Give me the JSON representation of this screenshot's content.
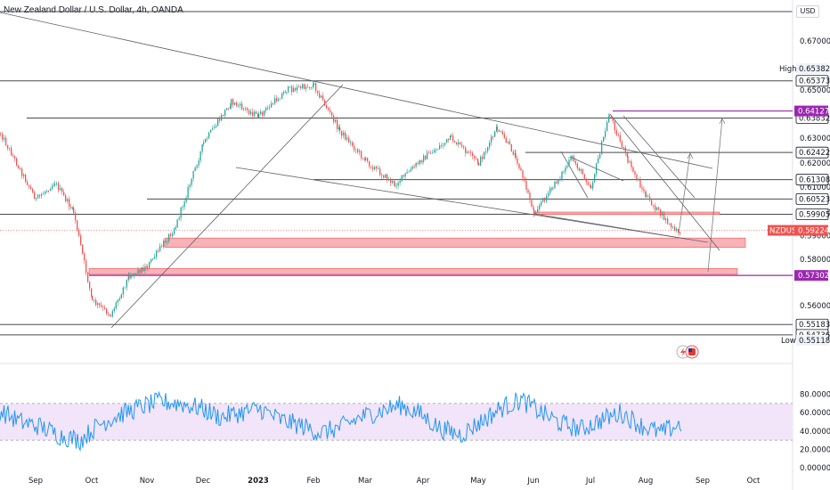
{
  "title": "New Zealand Dollar / U.S. Dollar, 4h, OANDA",
  "currency": "USD",
  "colors": {
    "candle_up": "#26a69a",
    "candle_down": "#ef5350",
    "highlight_line": "#9c27b0",
    "zone_fill": "#f7a6ad",
    "rsi_line": "#2196f3",
    "rsi_band": "#f3e5f9",
    "level_line": "#4a4a4a"
  },
  "chart_data": [
    {
      "type": "candlestick",
      "series": [
        {
          "name": "NZDUSD"
        }
      ],
      "x_ticks": [
        "Sep",
        "Oct",
        "Nov",
        "Dec",
        "2023",
        "Feb",
        "Mar",
        "Apr",
        "May",
        "Jun",
        "Jul",
        "Aug",
        "Sep",
        "Oct"
      ],
      "y_ticks": [
        "0.67000",
        "0.65000",
        "0.63000",
        "0.62000",
        "0.61000",
        "0.60000",
        "0.59000",
        "0.58000",
        "0.56000"
      ],
      "ylim": [
        0.545,
        0.685
      ],
      "path_points": [
        {
          "month": "Sep",
          "price": 0.605
        },
        {
          "month": "Sep",
          "price": 0.612
        },
        {
          "month": "Sep",
          "price": 0.6
        },
        {
          "month": "Oct",
          "price": 0.562
        },
        {
          "month": "Oct",
          "price": 0.556
        },
        {
          "month": "Oct",
          "price": 0.573
        },
        {
          "month": "Nov",
          "price": 0.577
        },
        {
          "month": "Nov",
          "price": 0.594
        },
        {
          "month": "Dec",
          "price": 0.628
        },
        {
          "month": "Dec",
          "price": 0.645
        },
        {
          "month": "2023",
          "price": 0.639
        },
        {
          "month": "2023",
          "price": 0.65
        },
        {
          "month": "Feb",
          "price": 0.652
        },
        {
          "month": "Feb",
          "price": 0.633
        },
        {
          "month": "Mar",
          "price": 0.621
        },
        {
          "month": "Mar",
          "price": 0.611
        },
        {
          "month": "Apr",
          "price": 0.622
        },
        {
          "month": "Apr",
          "price": 0.63
        },
        {
          "month": "May",
          "price": 0.62
        },
        {
          "month": "May",
          "price": 0.634
        },
        {
          "month": "May",
          "price": 0.623
        },
        {
          "month": "Jun",
          "price": 0.6
        },
        {
          "month": "Jun",
          "price": 0.61
        },
        {
          "month": "Jun",
          "price": 0.622
        },
        {
          "month": "Jul",
          "price": 0.61
        },
        {
          "month": "Jul",
          "price": 0.64
        },
        {
          "month": "Jul",
          "price": 0.621
        },
        {
          "month": "Aug",
          "price": 0.606
        },
        {
          "month": "Aug",
          "price": 0.592
        }
      ],
      "horizontal_levels": [
        {
          "value": 0.65373,
          "label": "0.65373"
        },
        {
          "value": 0.63832,
          "label": "0.63832"
        },
        {
          "value": 0.62422,
          "label": "0.62422"
        },
        {
          "value": 0.61308,
          "label": "0.61308"
        },
        {
          "value": 0.60523,
          "label": "0.60523"
        },
        {
          "value": 0.59905,
          "label": "0.59905"
        },
        {
          "value": 0.55183,
          "label": "0.55183"
        },
        {
          "value": 0.54736,
          "label": "0.54736"
        }
      ],
      "highlight_levels": [
        {
          "value": 0.64127,
          "label": "0.64127"
        },
        {
          "value": 0.57302,
          "label": "0.57302"
        }
      ],
      "current_price": {
        "symbol": "NZDUSD",
        "value": 0.59224,
        "label": "0.59224"
      },
      "high": {
        "label": "High",
        "value": "0.65382"
      },
      "low": {
        "label": "Low",
        "value": "0.55118"
      },
      "zones": [
        {
          "top": 0.589,
          "bottom": 0.585
        },
        {
          "top": 0.576,
          "bottom": 0.5735
        },
        {
          "top": 0.6,
          "bottom": 0.599
        }
      ]
    },
    {
      "type": "line",
      "series": [
        {
          "name": ""
        }
      ],
      "y_ticks": [
        "80.00000",
        "60.00000",
        "40.00000",
        "20.00000",
        "0.00000"
      ],
      "ylim": [
        0,
        100
      ],
      "band": [
        30,
        70
      ],
      "path_points": [
        62,
        50,
        45,
        35,
        30,
        48,
        58,
        66,
        72,
        70,
        65,
        55,
        60,
        64,
        52,
        46,
        38,
        44,
        55,
        62,
        68,
        58,
        42,
        36,
        50,
        65,
        74,
        60,
        48,
        42,
        52,
        60,
        46,
        38,
        48
      ]
    }
  ]
}
